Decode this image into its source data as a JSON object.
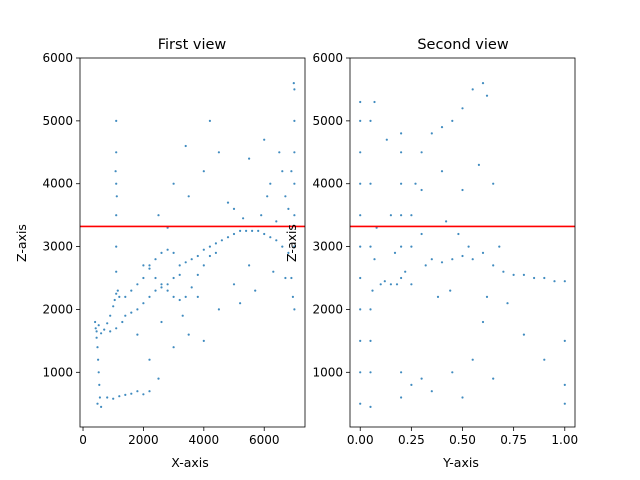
{
  "colors": {
    "points": "#1f77b4",
    "threshold_line": "#ff0000"
  },
  "chart_data": [
    {
      "type": "scatter",
      "title": "First view",
      "xlabel": "X-axis",
      "ylabel": "Z-axis",
      "xlim": [
        -100,
        7350
      ],
      "ylim": [
        130,
        6000
      ],
      "xticks": [
        0,
        2000,
        4000,
        6000
      ],
      "xtick_labels": [
        "0",
        "2000",
        "4000",
        "6000"
      ],
      "yticks": [
        1000,
        2000,
        3000,
        4000,
        5000,
        6000
      ],
      "ytick_labels": [
        "1000",
        "2000",
        "3000",
        "4000",
        "5000",
        "6000"
      ],
      "threshold_z": 3320,
      "grid": false,
      "series": [
        {
          "marker_size": "small",
          "points": [
            [
              400,
              1800
            ],
            [
              420,
              1700
            ],
            [
              450,
              1550
            ],
            [
              480,
              1400
            ],
            [
              500,
              1200
            ],
            [
              520,
              1000
            ],
            [
              540,
              800
            ],
            [
              560,
              600
            ],
            [
              480,
              500
            ],
            [
              600,
              450
            ],
            [
              450,
              1650
            ],
            [
              520,
              1750
            ],
            [
              600,
              1620
            ],
            [
              700,
              1680
            ],
            [
              800,
              1780
            ],
            [
              900,
              1900
            ],
            [
              1000,
              2050
            ],
            [
              1050,
              2150
            ],
            [
              1100,
              2250
            ],
            [
              1150,
              2300
            ],
            [
              1100,
              2600
            ],
            [
              1100,
              3000
            ],
            [
              1100,
              3500
            ],
            [
              1100,
              4000
            ],
            [
              1100,
              4500
            ],
            [
              1100,
              5000
            ],
            [
              1080,
              4200
            ],
            [
              1120,
              3800
            ],
            [
              1200,
              2200
            ],
            [
              1400,
              2200
            ],
            [
              1600,
              2300
            ],
            [
              1800,
              2400
            ],
            [
              2000,
              2500
            ],
            [
              2200,
              2700
            ],
            [
              2400,
              2800
            ],
            [
              2600,
              2900
            ],
            [
              2800,
              2950
            ],
            [
              3000,
              2900
            ],
            [
              3200,
              2700
            ],
            [
              3400,
              2750
            ],
            [
              3600,
              2800
            ],
            [
              3800,
              2850
            ],
            [
              4000,
              2950
            ],
            [
              4200,
              3000
            ],
            [
              4400,
              3050
            ],
            [
              4600,
              3100
            ],
            [
              4800,
              3150
            ],
            [
              5000,
              3200
            ],
            [
              5200,
              3250
            ],
            [
              5400,
              3250
            ],
            [
              5600,
              3250
            ],
            [
              5800,
              3250
            ],
            [
              6000,
              3200
            ],
            [
              6200,
              3150
            ],
            [
              6400,
              3100
            ],
            [
              6600,
              3000
            ],
            [
              6800,
              2900
            ],
            [
              6900,
              2500
            ],
            [
              6950,
              2200
            ],
            [
              7000,
              2000
            ],
            [
              7000,
              3000
            ],
            [
              7000,
              3500
            ],
            [
              7000,
              4000
            ],
            [
              7000,
              4500
            ],
            [
              7000,
              5000
            ],
            [
              7000,
              5500
            ],
            [
              6980,
              5600
            ],
            [
              6900,
              4200
            ],
            [
              6800,
              3600
            ],
            [
              6700,
              3800
            ],
            [
              6600,
              4200
            ],
            [
              6400,
              3400
            ],
            [
              1400,
              1900
            ],
            [
              1600,
              1950
            ],
            [
              1800,
              2000
            ],
            [
              2000,
              2100
            ],
            [
              2200,
              2200
            ],
            [
              2400,
              2300
            ],
            [
              2600,
              2350
            ],
            [
              2800,
              2400
            ],
            [
              3000,
              2500
            ],
            [
              3200,
              2550
            ],
            [
              900,
              1650
            ],
            [
              1100,
              1700
            ],
            [
              1300,
              1800
            ],
            [
              2000,
              2700
            ],
            [
              2200,
              2650
            ],
            [
              2400,
              2500
            ],
            [
              2600,
              2400
            ],
            [
              2800,
              2300
            ],
            [
              3000,
              2200
            ],
            [
              3200,
              2150
            ],
            [
              3400,
              2200
            ],
            [
              3600,
              2350
            ],
            [
              3800,
              2550
            ],
            [
              4000,
              2700
            ],
            [
              4200,
              2850
            ],
            [
              4400,
              2900
            ],
            [
              800,
              600
            ],
            [
              1000,
              580
            ],
            [
              1200,
              620
            ],
            [
              1400,
              640
            ],
            [
              1600,
              660
            ],
            [
              1800,
              700
            ],
            [
              2000,
              650
            ],
            [
              2200,
              700
            ],
            [
              2500,
              900
            ],
            [
              3000,
              1400
            ],
            [
              3500,
              1600
            ],
            [
              4000,
              1500
            ],
            [
              4500,
              2000
            ],
            [
              5000,
              2400
            ],
            [
              5500,
              2700
            ],
            [
              2500,
              3500
            ],
            [
              3000,
              4000
            ],
            [
              3500,
              3800
            ],
            [
              4000,
              4200
            ],
            [
              4500,
              4500
            ],
            [
              5000,
              3600
            ],
            [
              5500,
              4400
            ],
            [
              6000,
              4700
            ],
            [
              6200,
              4000
            ],
            [
              6500,
              4500
            ],
            [
              4200,
              5000
            ],
            [
              3400,
              4600
            ],
            [
              2800,
              3300
            ],
            [
              1800,
              1600
            ],
            [
              2200,
              1200
            ],
            [
              2600,
              1800
            ],
            [
              3300,
              1900
            ],
            [
              3800,
              2200
            ],
            [
              5200,
              2100
            ],
            [
              5700,
              2300
            ],
            [
              6300,
              2600
            ],
            [
              6700,
              2500
            ],
            [
              4800,
              3700
            ],
            [
              5300,
              3450
            ],
            [
              5900,
              3500
            ],
            [
              6100,
              3800
            ]
          ]
        }
      ]
    },
    {
      "type": "scatter",
      "title": "Second view",
      "xlabel": "Y-axis",
      "ylabel": "Z-axis",
      "xlim": [
        -0.05,
        1.05
      ],
      "ylim": [
        130,
        6000
      ],
      "xticks": [
        0,
        0.25,
        0.5,
        0.75,
        1
      ],
      "xtick_labels": [
        "0.00",
        "0.25",
        "0.50",
        "0.75",
        "1.00"
      ],
      "yticks": [
        1000,
        2000,
        3000,
        4000,
        5000,
        6000
      ],
      "ytick_labels": [
        "1000",
        "2000",
        "3000",
        "4000",
        "5000",
        "6000"
      ],
      "threshold_z": 3320,
      "grid": false,
      "series": [
        {
          "marker_size": "small",
          "points": [
            [
              0.0,
              500
            ],
            [
              0.0,
              1000
            ],
            [
              0.0,
              1500
            ],
            [
              0.0,
              2000
            ],
            [
              0.0,
              2500
            ],
            [
              0.0,
              3000
            ],
            [
              0.0,
              3500
            ],
            [
              0.0,
              4000
            ],
            [
              0.0,
              4500
            ],
            [
              0.0,
              5000
            ],
            [
              0.0,
              5300
            ],
            [
              0.05,
              450
            ],
            [
              0.05,
              1000
            ],
            [
              0.05,
              1500
            ],
            [
              0.05,
              2000
            ],
            [
              0.05,
              3000
            ],
            [
              0.05,
              4000
            ],
            [
              0.05,
              5000
            ],
            [
              0.06,
              2300
            ],
            [
              0.07,
              2800
            ],
            [
              0.08,
              3300
            ],
            [
              0.07,
              5300
            ],
            [
              0.1,
              2400
            ],
            [
              0.12,
              2450
            ],
            [
              0.15,
              2400
            ],
            [
              0.18,
              2400
            ],
            [
              0.2,
              2500
            ],
            [
              0.2,
              3000
            ],
            [
              0.2,
              3500
            ],
            [
              0.2,
              4000
            ],
            [
              0.2,
              4500
            ],
            [
              0.2,
              4800
            ],
            [
              0.22,
              2600
            ],
            [
              0.25,
              2400
            ],
            [
              0.25,
              3000
            ],
            [
              0.25,
              3500
            ],
            [
              0.27,
              4000
            ],
            [
              0.3,
              4500
            ],
            [
              0.3,
              3200
            ],
            [
              0.32,
              2700
            ],
            [
              0.35,
              2800
            ],
            [
              0.35,
              4800
            ],
            [
              0.4,
              2750
            ],
            [
              0.4,
              4900
            ],
            [
              0.45,
              2800
            ],
            [
              0.45,
              5000
            ],
            [
              0.5,
              2850
            ],
            [
              0.5,
              5200
            ],
            [
              0.55,
              2800
            ],
            [
              0.55,
              5500
            ],
            [
              0.6,
              2900
            ],
            [
              0.6,
              5600
            ],
            [
              0.62,
              5400
            ],
            [
              0.65,
              4000
            ],
            [
              0.65,
              2700
            ],
            [
              0.7,
              2600
            ],
            [
              0.75,
              2550
            ],
            [
              0.8,
              2550
            ],
            [
              0.85,
              2500
            ],
            [
              0.9,
              2500
            ],
            [
              0.95,
              2450
            ],
            [
              1.0,
              2450
            ],
            [
              0.68,
              3000
            ],
            [
              0.3,
              3900
            ],
            [
              0.4,
              4200
            ],
            [
              0.5,
              3900
            ],
            [
              0.58,
              4300
            ],
            [
              0.25,
              800
            ],
            [
              0.3,
              900
            ],
            [
              0.35,
              700
            ],
            [
              0.45,
              1000
            ],
            [
              0.5,
              600
            ],
            [
              0.55,
              1200
            ],
            [
              0.6,
              1800
            ],
            [
              0.65,
              900
            ],
            [
              0.8,
              1600
            ],
            [
              0.9,
              1200
            ],
            [
              1.0,
              800
            ],
            [
              1.0,
              500
            ],
            [
              1.0,
              1500
            ],
            [
              0.13,
              4700
            ],
            [
              0.15,
              3500
            ],
            [
              0.17,
              2900
            ],
            [
              0.42,
              3400
            ],
            [
              0.48,
              3200
            ],
            [
              0.53,
              3000
            ],
            [
              0.44,
              2300
            ],
            [
              0.38,
              2200
            ],
            [
              0.62,
              2200
            ],
            [
              0.72,
              2100
            ],
            [
              0.2,
              600
            ],
            [
              0.2,
              1000
            ]
          ]
        }
      ]
    }
  ]
}
